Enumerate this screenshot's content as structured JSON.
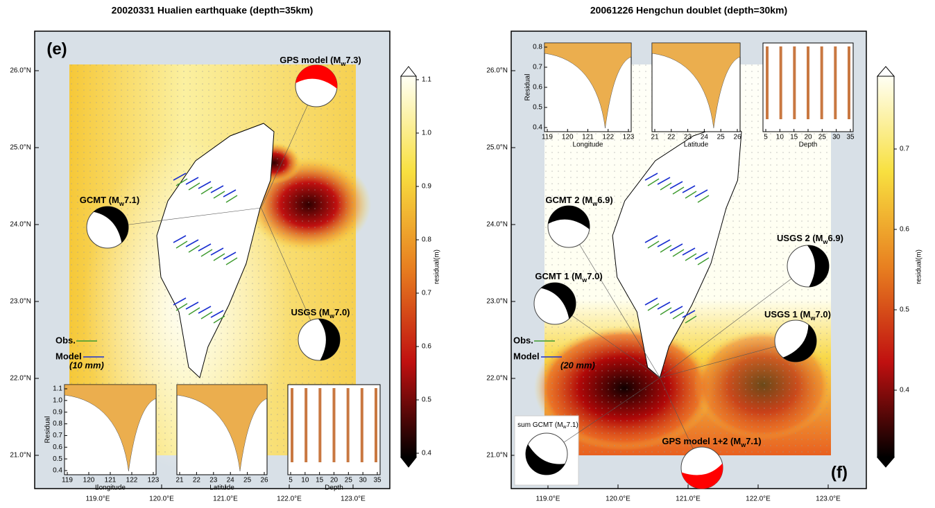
{
  "panels": [
    {
      "title": "20020331 Hualien earthquake (depth=35km)",
      "label": "(e)",
      "lat_ticks": [
        "26.0°N",
        "25.0°N",
        "24.0°N",
        "23.0°N",
        "22.0°N",
        "21.0°N"
      ],
      "lon_ticks": [
        "119.0°E",
        "120.0°E",
        "121.0°E",
        "122.0°E",
        "123.0°E"
      ],
      "colorbar": {
        "label": "residual(m)",
        "ticks": [
          "1.1",
          "1.0",
          "0.9",
          "0.8",
          "0.7",
          "0.6",
          "0.5",
          "0.4"
        ]
      },
      "annotations": [
        {
          "before": "GPS model (M",
          "sub": "w",
          "after": "7.3)"
        },
        {
          "before": "GCMT (M",
          "sub": "w",
          "after": "7.1)"
        },
        {
          "before": "USGS (M",
          "sub": "w",
          "after": "7.0)"
        }
      ],
      "legend": {
        "obs": "Obs.",
        "model": "Model",
        "scale": "(10 mm)"
      },
      "insets": [
        {
          "y_label": "Residual",
          "y_ticks": [
            "1.1",
            "1.0",
            "0.9",
            "0.8",
            "0.7",
            "0.6",
            "0.5",
            "0.4"
          ],
          "x_label": "Longitude",
          "x_ticks": [
            "119",
            "120",
            "121",
            "122",
            "123"
          ]
        },
        {
          "x_label": "Latitude",
          "x_ticks": [
            "21",
            "22",
            "23",
            "24",
            "25",
            "26"
          ]
        },
        {
          "x_label": "Depth",
          "x_ticks": [
            "5",
            "10",
            "15",
            "20",
            "25",
            "30",
            "35"
          ]
        }
      ]
    },
    {
      "title": "20061226 Hengchun doublet (depth=30km)",
      "label": "(f)",
      "lat_ticks": [
        "26.0°N",
        "25.0°N",
        "24.0°N",
        "23.0°N",
        "22.0°N",
        "21.0°N"
      ],
      "lon_ticks": [
        "119.0°E",
        "120.0°E",
        "121.0°E",
        "122.0°E",
        "123.0°E"
      ],
      "colorbar": {
        "label": "residual(m)",
        "ticks": [
          "0.7",
          "0.6",
          "0.5",
          "0.4"
        ]
      },
      "annotations": [
        {
          "before": "GCMT 2 (M",
          "sub": "w",
          "after": "6.9)"
        },
        {
          "before": "GCMT 1 (M",
          "sub": "w",
          "after": "7.0)"
        },
        {
          "before": "USGS 2 (M",
          "sub": "w",
          "after": "6.9)"
        },
        {
          "before": "USGS 1 (M",
          "sub": "w",
          "after": "7.0)"
        },
        {
          "before": "GPS model 1+2 (M",
          "sub": "w",
          "after": "7.1)"
        },
        {
          "before": "sum GCMT (M",
          "sub": "w",
          "after": "7.1)"
        }
      ],
      "legend": {
        "obs": "Obs.",
        "model": "Model",
        "scale": "(20 mm)"
      },
      "insets": [
        {
          "y_label": "Residual",
          "y_ticks": [
            "0.8",
            "0.7",
            "0.6",
            "0.5",
            "0.4"
          ],
          "x_label": "Longitude",
          "x_ticks": [
            "119",
            "120",
            "121",
            "122",
            "123"
          ]
        },
        {
          "x_label": "Latitude",
          "x_ticks": [
            "21",
            "22",
            "23",
            "24",
            "25",
            "26"
          ]
        },
        {
          "x_label": "Depth",
          "x_ticks": [
            "5",
            "10",
            "15",
            "20",
            "25",
            "30",
            "35"
          ]
        }
      ]
    }
  ]
}
